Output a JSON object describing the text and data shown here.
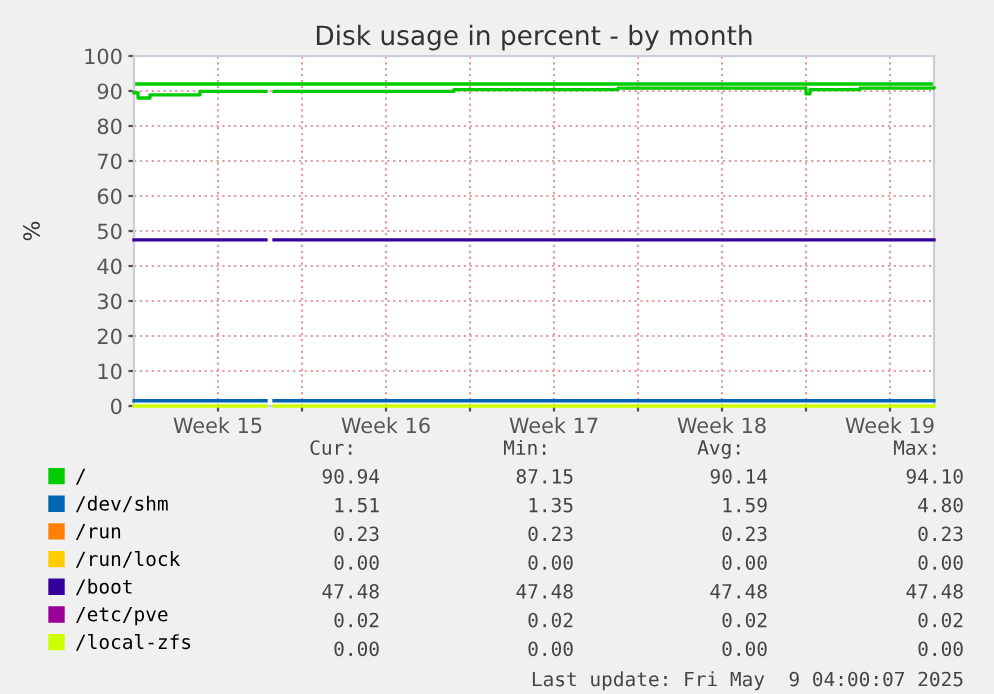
{
  "chart_data": {
    "type": "step",
    "title": "Disk usage in percent - by month",
    "ylabel": "%",
    "x": [
      "2025-04-07T00:00",
      "2025-04-07T04:00",
      "2025-04-07T16:00",
      "2025-04-09T18:00",
      "2025-04-12T12:00",
      "2025-04-12T20:00",
      "2025-04-20T08:00",
      "2025-04-27T04:00",
      "2025-05-05T00:00",
      "2025-05-05T04:00",
      "2025-05-07T06:00",
      "2025-05-10T08:00"
    ],
    "series": [
      {
        "name": "/",
        "color": "#00cc00",
        "values": [
          89.5,
          88.0,
          88.9,
          89.9,
          null,
          89.9,
          90.4,
          90.8,
          89.2,
          90.4,
          90.8,
          90.9
        ]
      },
      {
        "name": "/dev/shm",
        "color": "#0066b3",
        "values": [
          1.5,
          1.5,
          1.5,
          1.5,
          null,
          1.5,
          1.5,
          1.5,
          1.5,
          1.5,
          1.5,
          1.5
        ]
      },
      {
        "name": "/run",
        "color": "#ff8000",
        "values": [
          null,
          null,
          null,
          null,
          null,
          null,
          null,
          null,
          null,
          null,
          null,
          null
        ]
      },
      {
        "name": "/run/lock",
        "color": "#ffcc00",
        "values": [
          null,
          null,
          null,
          null,
          null,
          null,
          null,
          null,
          null,
          null,
          null,
          null
        ]
      },
      {
        "name": "/boot",
        "color": "#330099",
        "values": [
          47.48,
          47.48,
          47.48,
          47.48,
          null,
          47.48,
          47.48,
          47.48,
          47.48,
          47.48,
          47.48,
          47.48
        ]
      },
      {
        "name": "/etc/pve",
        "color": "#990099",
        "values": [
          null,
          null,
          null,
          null,
          null,
          null,
          null,
          null,
          null,
          null,
          null,
          null
        ]
      },
      {
        "name": "/local-zfs",
        "color": "#ccff00",
        "values": [
          0,
          0,
          0,
          0,
          null,
          0,
          0,
          0,
          0,
          0,
          0,
          0
        ]
      }
    ],
    "ref_lines": [
      {
        "axis": "y",
        "value": 92,
        "color": "#00cc00"
      }
    ],
    "xlim": [
      "2025-04-07T00:00",
      "2025-05-10T08:00"
    ],
    "xticks": [
      {
        "value": "2025-04-10T12:00",
        "label": "Week 15"
      },
      {
        "value": "2025-04-14T00:00",
        "label": null
      },
      {
        "value": "2025-04-17T12:00",
        "label": "Week 16"
      },
      {
        "value": "2025-04-21T00:00",
        "label": null
      },
      {
        "value": "2025-04-24T12:00",
        "label": "Week 17"
      },
      {
        "value": "2025-04-28T00:00",
        "label": null
      },
      {
        "value": "2025-05-01T12:00",
        "label": "Week 18"
      },
      {
        "value": "2025-05-05T00:00",
        "label": null
      },
      {
        "value": "2025-05-08T12:00",
        "label": "Week 19"
      }
    ],
    "ylim": [
      0,
      100
    ],
    "yticks": [
      0,
      10,
      20,
      30,
      40,
      50,
      60,
      70,
      80,
      90,
      100
    ],
    "grid": true,
    "legend": "bottom",
    "line_style": "solid",
    "marker": "none",
    "annotations": [
      "Cur:",
      "Min:",
      "Avg:",
      "Max:",
      "90.94",
      "87.15",
      "90.14",
      "94.10",
      "1.51",
      "1.35",
      "1.59",
      "4.80",
      "0.23",
      "0.23",
      "0.23",
      "0.23",
      "0.00",
      "0.00",
      "0.00",
      "0.00",
      "47.48",
      "47.48",
      "47.48",
      "47.48",
      "0.02",
      "0.02",
      "0.02",
      "0.02",
      "0.00",
      "0.00",
      "0.00",
      "0.00",
      "Last update: Fri May  9 04:00:07 2025"
    ]
  }
}
